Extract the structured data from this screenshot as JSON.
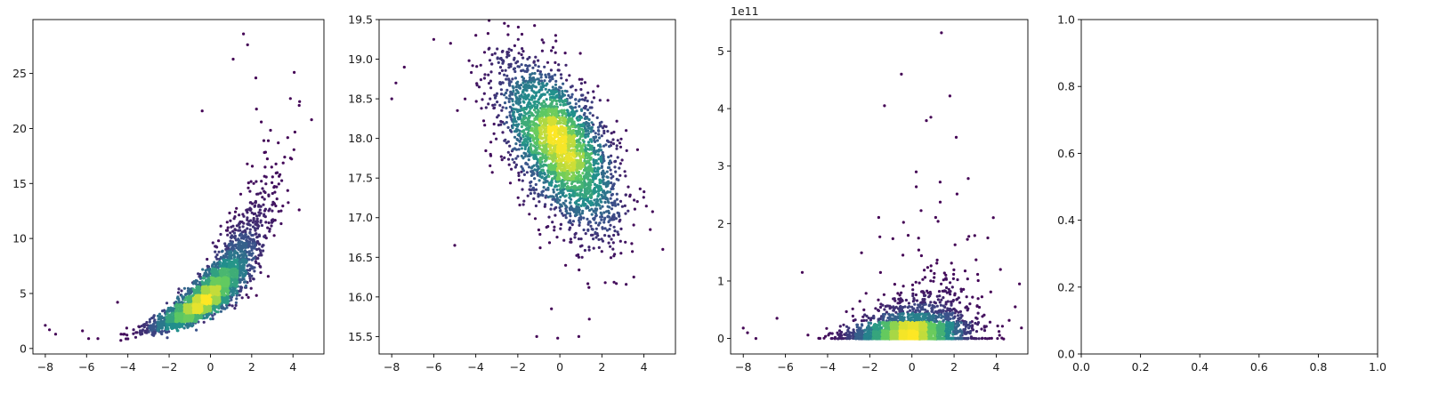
{
  "colors": {
    "colormap": [
      "#440154",
      "#3b528b",
      "#21918c",
      "#5ec962",
      "#fde725"
    ],
    "axis": "#000000",
    "background": "#ffffff"
  },
  "chart_data": [
    {
      "type": "scatter",
      "title": "",
      "xlabel": "",
      "ylabel": "",
      "xlim": [
        -8.6,
        5.5
      ],
      "ylim": [
        -0.5,
        29.9
      ],
      "xticks": [
        -8,
        -6,
        -4,
        -2,
        0,
        2,
        4
      ],
      "yticks": [
        0,
        5,
        10,
        15,
        20,
        25
      ],
      "ytick_labels": [
        "0",
        "5",
        "10",
        "15",
        "20",
        "25"
      ],
      "y_offset_label": "",
      "color_by": "point density (viridis)",
      "grid": false,
      "distribution": {
        "form": "exp_curve",
        "x_mean": 0,
        "x_sd": 1.35,
        "y_at_x0": 4.9,
        "growth_per_x": 0.33,
        "scatter_sd": 0.22,
        "n_points": 3000
      },
      "outliers": [
        [
          -8.0,
          2.1
        ],
        [
          -7.8,
          1.7
        ],
        [
          -7.5,
          1.3
        ],
        [
          -6.2,
          1.6
        ],
        [
          -5.9,
          0.9
        ],
        [
          -4.5,
          4.2
        ],
        [
          1.6,
          28.6
        ],
        [
          1.8,
          27.6
        ],
        [
          1.1,
          26.3
        ],
        [
          2.2,
          24.6
        ],
        [
          4.9,
          20.8
        ],
        [
          -0.4,
          21.6
        ],
        [
          4.3,
          22.1
        ],
        [
          3.6,
          17.4
        ],
        [
          4.3,
          12.6
        ]
      ]
    },
    {
      "type": "scatter",
      "title": "",
      "xlabel": "",
      "ylabel": "",
      "xlim": [
        -8.6,
        5.5
      ],
      "ylim": [
        15.28,
        19.5
      ],
      "xticks": [
        -8,
        -6,
        -4,
        -2,
        0,
        2,
        4
      ],
      "yticks": [
        15.5,
        16.0,
        16.5,
        17.0,
        17.5,
        18.0,
        18.5,
        19.0,
        19.5
      ],
      "ytick_labels": [
        "15.5",
        "16.0",
        "16.5",
        "17.0",
        "17.5",
        "18.0",
        "18.5",
        "19.0",
        "19.5"
      ],
      "y_offset_label": "",
      "color_by": "point density (viridis)",
      "grid": false,
      "distribution": {
        "form": "linear_gaussian",
        "x_mean": 0,
        "x_sd": 1.35,
        "y_at_x0": 17.9,
        "slope": -0.22,
        "scatter_sd": 0.42,
        "n_points": 3000
      },
      "outliers": [
        [
          -8.0,
          18.5
        ],
        [
          -7.8,
          18.7
        ],
        [
          -7.4,
          18.9
        ],
        [
          -6.0,
          19.25
        ],
        [
          -5.2,
          19.2
        ],
        [
          -5.0,
          16.65
        ],
        [
          -3.3,
          17.8
        ],
        [
          -0.2,
          19.3
        ],
        [
          -0.4,
          15.85
        ],
        [
          -1.1,
          15.5
        ],
        [
          -0.1,
          15.48
        ],
        [
          0.9,
          15.5
        ],
        [
          1.4,
          15.72
        ],
        [
          4.9,
          16.6
        ],
        [
          4.3,
          16.85
        ]
      ]
    },
    {
      "type": "scatter",
      "title": "",
      "xlabel": "",
      "ylabel": "",
      "xlim": [
        -8.6,
        5.5
      ],
      "ylim": [
        -0.27,
        5.55
      ],
      "xticks": [
        -8,
        -6,
        -4,
        -2,
        0,
        2,
        4
      ],
      "yticks": [
        0,
        1,
        2,
        3,
        4,
        5
      ],
      "ytick_labels": [
        "0",
        "1",
        "2",
        "3",
        "4",
        "5"
      ],
      "y_offset_label": "1e11",
      "color_by": "point density (viridis)",
      "grid": false,
      "distribution": {
        "form": "baseline_plus_spread",
        "x_mean": 0,
        "x_sd": 1.35,
        "baseline_fraction": 0.35,
        "cluster_center_y": 0.18,
        "spread_scale": 0.3,
        "n_points": 3000
      },
      "outliers": [
        [
          1.4,
          5.32
        ],
        [
          -0.5,
          4.6
        ],
        [
          1.8,
          4.22
        ],
        [
          -1.3,
          4.05
        ],
        [
          0.9,
          3.85
        ],
        [
          2.1,
          3.5
        ],
        [
          0.2,
          2.9
        ],
        [
          -5.2,
          1.15
        ],
        [
          -8.0,
          0.18
        ],
        [
          -7.8,
          0.1
        ],
        [
          -7.4,
          0.0
        ],
        [
          -6.4,
          0.35
        ],
        [
          3.6,
          1.75
        ],
        [
          4.2,
          1.2
        ],
        [
          4.9,
          0.55
        ]
      ]
    },
    {
      "type": "scatter",
      "title": "",
      "xlabel": "",
      "ylabel": "",
      "xlim": [
        0,
        1
      ],
      "ylim": [
        0,
        1
      ],
      "xticks": [
        0.0,
        0.2,
        0.4,
        0.6,
        0.8,
        1.0
      ],
      "xtick_labels": [
        "0.0",
        "0.2",
        "0.4",
        "0.6",
        "0.8",
        "1.0"
      ],
      "yticks": [
        0.0,
        0.2,
        0.4,
        0.6,
        0.8,
        1.0
      ],
      "ytick_labels": [
        "0.0",
        "0.2",
        "0.4",
        "0.6",
        "0.8",
        "1.0"
      ],
      "y_offset_label": "",
      "grid": false,
      "distribution": null,
      "outliers": []
    }
  ]
}
